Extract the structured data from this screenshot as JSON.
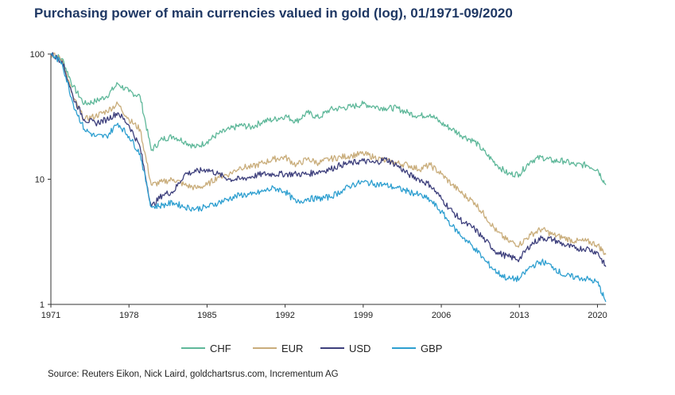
{
  "title": "Purchasing power of main currencies valued in gold (log), 01/1971-09/2020",
  "source": "Source: Reuters Eikon, Nick Laird, goldchartsrus.com, Incrementum AG",
  "chart_data": {
    "type": "line",
    "title": "Purchasing power of main currencies valued in gold (log), 01/1971-09/2020",
    "xlabel": "",
    "ylabel": "",
    "y_scale": "log",
    "ylim": [
      1,
      100
    ],
    "xlim": [
      1971,
      2020.75
    ],
    "x_ticks": [
      "1971",
      "1978",
      "1985",
      "1992",
      "1999",
      "2006",
      "2013",
      "2020"
    ],
    "y_ticks": [
      "1",
      "10",
      "100"
    ],
    "grid": false,
    "legend_position": "bottom",
    "series": [
      {
        "name": "CHF",
        "color": "#5fb89a",
        "x": [
          1971,
          1972,
          1973,
          1974,
          1975,
          1976,
          1977,
          1978,
          1979,
          1980,
          1981,
          1982,
          1983,
          1984,
          1985,
          1986,
          1987,
          1988,
          1989,
          1990,
          1991,
          1992,
          1993,
          1994,
          1995,
          1996,
          1997,
          1998,
          1999,
          2000,
          2001,
          2002,
          2003,
          2004,
          2005,
          2006,
          2007,
          2008,
          2009,
          2010,
          2011,
          2012,
          2013,
          2014,
          2015,
          2016,
          2017,
          2018,
          2019,
          2020.0,
          2020.75
        ],
        "values": [
          100,
          92,
          55,
          40,
          42,
          46,
          58,
          50,
          46,
          17,
          21,
          22,
          20,
          18,
          20,
          23,
          25,
          27,
          26,
          29,
          30,
          32,
          29,
          34,
          31,
          36,
          37,
          38,
          40,
          38,
          37,
          37,
          34,
          32,
          33,
          28,
          25,
          22,
          20,
          16,
          13,
          11,
          11,
          14,
          15,
          14,
          14,
          13,
          13,
          12,
          9
        ]
      },
      {
        "name": "EUR",
        "color": "#c9ad7b",
        "x": [
          1971,
          1972,
          1973,
          1974,
          1975,
          1976,
          1977,
          1978,
          1979,
          1980,
          1981,
          1982,
          1983,
          1984,
          1985,
          1986,
          1987,
          1988,
          1989,
          1990,
          1991,
          1992,
          1993,
          1994,
          1995,
          1996,
          1997,
          1998,
          1999,
          2000,
          2001,
          2002,
          2003,
          2004,
          2005,
          2006,
          2007,
          2008,
          2009,
          2010,
          2011,
          2012,
          2013,
          2014,
          2015,
          2016,
          2017,
          2018,
          2019,
          2020.0,
          2020.75
        ],
        "values": [
          100,
          90,
          45,
          30,
          32,
          35,
          40,
          30,
          25,
          9,
          9.5,
          10,
          9,
          8.5,
          9,
          10.5,
          11,
          12.5,
          12.5,
          13.5,
          14.5,
          15,
          13,
          14.5,
          13.5,
          14.5,
          15,
          15.5,
          16,
          15,
          14,
          13.5,
          13,
          12,
          13,
          11,
          9,
          7.5,
          6.5,
          5,
          3.8,
          3.2,
          3.0,
          3.6,
          4,
          3.6,
          3.4,
          3.2,
          3.2,
          3.0,
          2.5
        ]
      },
      {
        "name": "USD",
        "color": "#3d3f7c",
        "x": [
          1971,
          1972,
          1973,
          1974,
          1975,
          1976,
          1977,
          1978,
          1979,
          1980,
          1981,
          1982,
          1983,
          1984,
          1985,
          1986,
          1987,
          1988,
          1989,
          1990,
          1991,
          1992,
          1993,
          1994,
          1995,
          1996,
          1997,
          1998,
          1999,
          2000,
          2001,
          2002,
          2003,
          2004,
          2005,
          2006,
          2007,
          2008,
          2009,
          2010,
          2011,
          2012,
          2013,
          2014,
          2015,
          2016,
          2017,
          2018,
          2019,
          2020.0,
          2020.75
        ],
        "values": [
          100,
          88,
          45,
          30,
          28,
          30,
          34,
          27,
          18,
          6,
          7.5,
          8,
          11,
          11.5,
          12,
          11,
          10,
          10,
          10.5,
          11,
          11,
          11,
          11,
          11,
          11.5,
          12,
          13,
          13.5,
          14,
          13.5,
          14.5,
          13,
          11,
          10,
          9,
          7,
          5.5,
          4.5,
          4,
          3.2,
          2.6,
          2.4,
          2.3,
          3.0,
          3.4,
          3.3,
          3.0,
          2.8,
          2.8,
          2.6,
          2.0
        ]
      },
      {
        "name": "GBP",
        "color": "#2e9fd0",
        "x": [
          1971,
          1972,
          1973,
          1974,
          1975,
          1976,
          1977,
          1978,
          1979,
          1980,
          1981,
          1982,
          1983,
          1984,
          1985,
          1986,
          1987,
          1988,
          1989,
          1990,
          1991,
          1992,
          1993,
          1994,
          1995,
          1996,
          1997,
          1998,
          1999,
          2000,
          2001,
          2002,
          2003,
          2004,
          2005,
          2006,
          2007,
          2008,
          2009,
          2010,
          2011,
          2012,
          2013,
          2014,
          2015,
          2016,
          2017,
          2018,
          2019,
          2020.0,
          2020.75
        ],
        "values": [
          100,
          85,
          40,
          25,
          22,
          22,
          28,
          22,
          16,
          6,
          6.2,
          6.5,
          6,
          5.8,
          6,
          6.5,
          7,
          7.5,
          7.5,
          8,
          8.5,
          8,
          6.5,
          7,
          7,
          7.2,
          8,
          9,
          9.5,
          9.2,
          9,
          8.5,
          8,
          7.5,
          6.8,
          5.5,
          4.2,
          3.4,
          2.8,
          2.2,
          1.8,
          1.6,
          1.6,
          2.0,
          2.2,
          2.0,
          1.7,
          1.65,
          1.6,
          1.5,
          1.05
        ]
      }
    ]
  }
}
